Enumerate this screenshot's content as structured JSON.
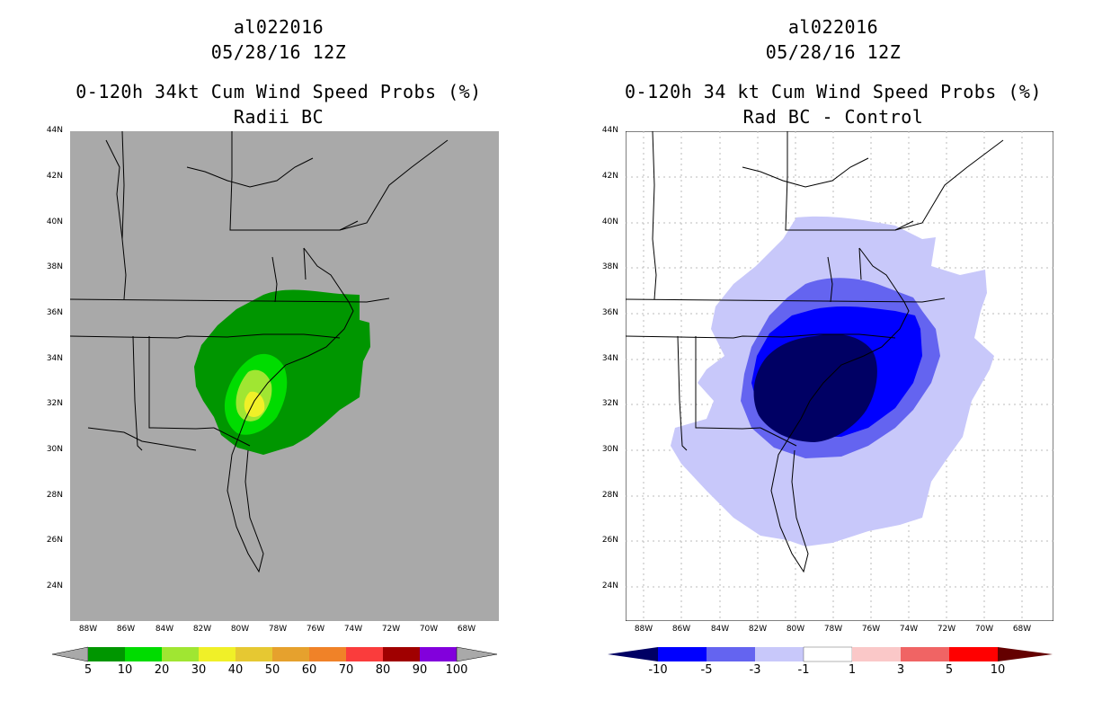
{
  "left_panel": {
    "title_line1": "al022016",
    "title_line2": "05/28/16 12Z",
    "title_line3": "0-120h 34kt Cum Wind Speed Probs (%)",
    "title_line4": "Radii BC",
    "background_color": "#a9a9a9",
    "colorbar": {
      "colors": [
        "#009600",
        "#00dc00",
        "#a0e632",
        "#f0f028",
        "#e6c832",
        "#e6a12d",
        "#f08228",
        "#fa3c3c",
        "#a00000",
        "#8200dc"
      ],
      "labels": [
        "5",
        "10",
        "20",
        "30",
        "40",
        "50",
        "60",
        "70",
        "80",
        "90",
        "100"
      ]
    }
  },
  "right_panel": {
    "title_line1": "al022016",
    "title_line2": "05/28/16 12Z",
    "title_line3": "0-120h 34 kt Cum Wind Speed Probs (%)",
    "title_line4": "Rad BC - Control",
    "background_color": "#ffffff",
    "colorbar": {
      "colors": [
        "#000064",
        "#0000ff",
        "#6464f0",
        "#c8c8fa",
        "#ffffff",
        "#fac8c8",
        "#f06464",
        "#ff0000",
        "#640000"
      ],
      "labels": [
        "-10",
        "-5",
        "-3",
        "-1",
        "1",
        "3",
        "5",
        "10"
      ]
    }
  },
  "axes": {
    "lat_labels": [
      "44N",
      "42N",
      "40N",
      "38N",
      "36N",
      "34N",
      "32N",
      "30N",
      "28N",
      "26N",
      "24N"
    ],
    "lon_labels": [
      "88W",
      "86W",
      "84W",
      "82W",
      "80W",
      "78W",
      "76W",
      "74W",
      "72W",
      "70W",
      "68W"
    ]
  }
}
